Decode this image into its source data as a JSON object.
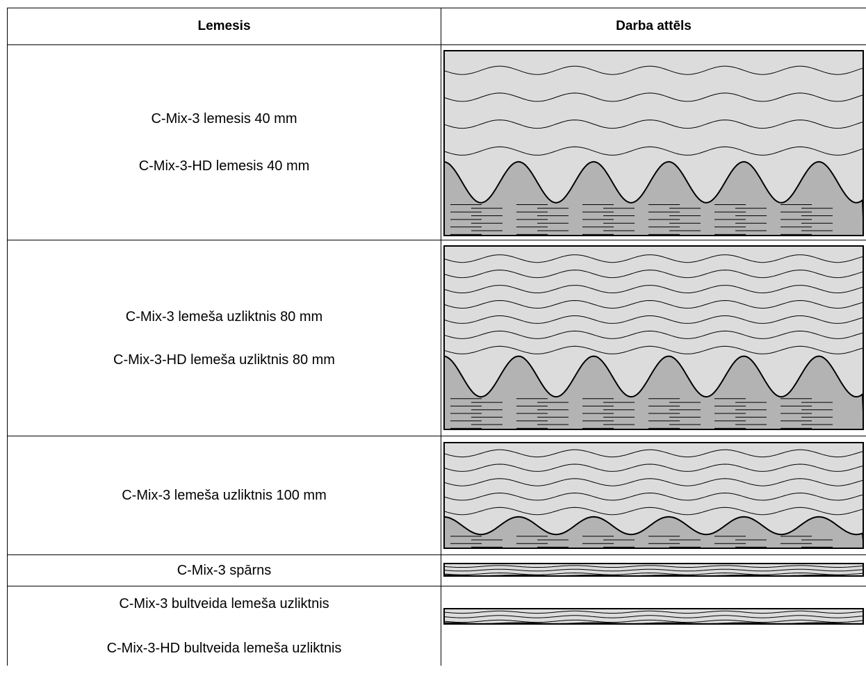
{
  "table": {
    "headers": {
      "blade": "Lemesis",
      "pattern": "Darba attēls"
    },
    "rows": [
      {
        "lines": [
          "C-Mix-3 lemesis 40 mm",
          "C-Mix-3-HD lemesis 40 mm"
        ],
        "pattern": {
          "upper_waves": 4
        }
      },
      {
        "lines": [
          "C-Mix-3 lemeša uzliktnis 80 mm",
          "C-Mix-3-HD lemeša uzliktnis 80 mm"
        ],
        "pattern": {
          "upper_waves": 7
        }
      },
      {
        "lines": [
          "C-Mix-3 lemeša uzliktnis 100 mm"
        ],
        "pattern": {
          "upper_waves": 5
        }
      },
      {
        "lines": [
          "C-Mix-3 spārns"
        ],
        "pattern": {
          "upper_waves": 3
        }
      },
      {
        "lines": [
          "C-Mix-3 bultveida lemeša uzliktnis",
          "C-Mix-3-HD bultveida lemeša uzliktnis"
        ],
        "pattern": {
          "upper_waves": 3
        }
      }
    ]
  },
  "colors": {
    "upper_layer": "#dcdcdc",
    "lower_layer": "#b3b3b3",
    "lines": "#000000"
  }
}
